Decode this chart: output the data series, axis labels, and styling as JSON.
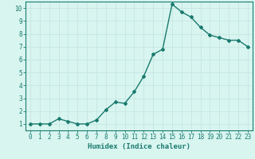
{
  "x": [
    0,
    1,
    2,
    3,
    4,
    5,
    6,
    7,
    8,
    9,
    10,
    11,
    12,
    13,
    14,
    15,
    16,
    17,
    18,
    19,
    20,
    21,
    22,
    23
  ],
  "y": [
    1.0,
    1.0,
    1.0,
    1.4,
    1.2,
    1.0,
    1.0,
    1.3,
    2.1,
    2.7,
    2.6,
    3.5,
    4.7,
    6.4,
    6.8,
    10.3,
    9.7,
    9.3,
    8.5,
    7.9,
    7.7,
    7.5,
    7.5,
    7.0
  ],
  "line_color": "#1a7a6e",
  "marker": "D",
  "marker_size": 2.0,
  "bg_color": "#d8f5f0",
  "grid_color": "#c8e8e4",
  "xlabel": "Humidex (Indice chaleur)",
  "xlim": [
    -0.5,
    23.5
  ],
  "ylim": [
    0.5,
    10.5
  ],
  "yticks": [
    1,
    2,
    3,
    4,
    5,
    6,
    7,
    8,
    9,
    10
  ],
  "xticks": [
    0,
    1,
    2,
    3,
    4,
    5,
    6,
    7,
    8,
    9,
    10,
    11,
    12,
    13,
    14,
    15,
    16,
    17,
    18,
    19,
    20,
    21,
    22,
    23
  ],
  "tick_color": "#1a7a6e",
  "axis_color": "#1a7a6e",
  "xlabel_fontsize": 6.5,
  "tick_fontsize": 5.5,
  "linewidth": 1.0
}
